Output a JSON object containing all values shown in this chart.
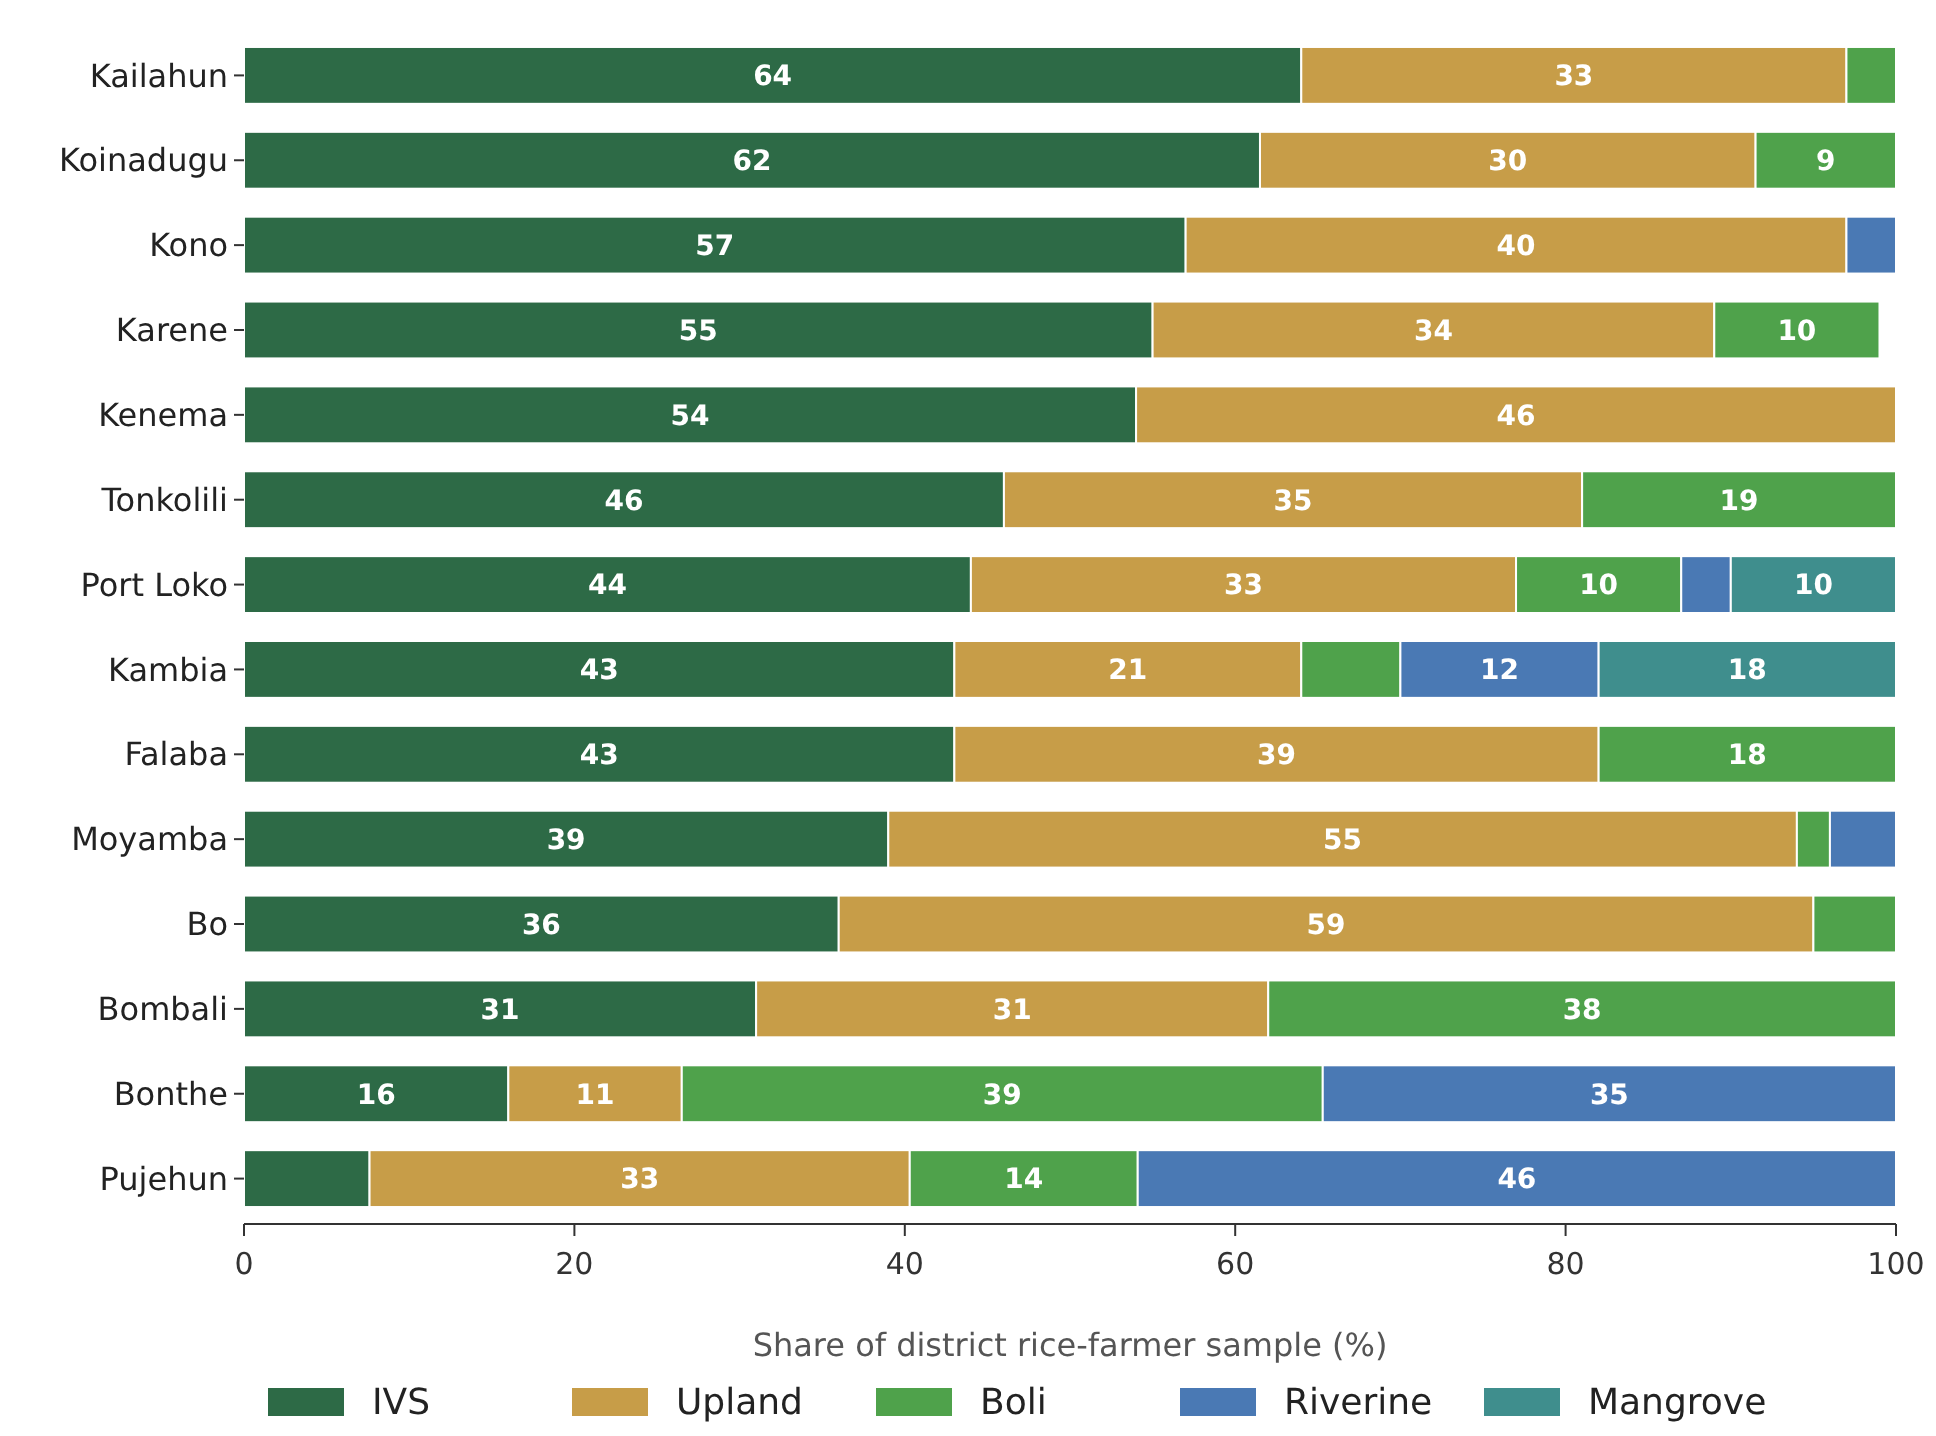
{
  "chart_data": {
    "type": "bar",
    "orientation": "horizontal",
    "stacked": true,
    "xlabel": "Share of district rice-farmer sample (%)",
    "categories": [
      "Kailahun",
      "Koinadugu",
      "Kono",
      "Karene",
      "Kenema",
      "Tonkolili",
      "Port Loko",
      "Kambia",
      "Falaba",
      "Moyamba",
      "Bo",
      "Bombali",
      "Bonthe",
      "Pujehun"
    ],
    "series": [
      {
        "name": "IVS",
        "color": "#2d6a46",
        "values": [
          64,
          61.5,
          57,
          55,
          54,
          46,
          44,
          43,
          43,
          39,
          36,
          31,
          16,
          7.6
        ],
        "value_labels": [
          "64",
          "62",
          "57",
          "55",
          "54",
          "46",
          "44",
          "43",
          "43",
          "39",
          "36",
          "31",
          "16",
          null
        ]
      },
      {
        "name": "Upland",
        "color": "#c79d48",
        "values": [
          33,
          30,
          40,
          34,
          46,
          35,
          33,
          21,
          39,
          55,
          59,
          31,
          10.5,
          32.7
        ],
        "value_labels": [
          "33",
          "30",
          "40",
          "34",
          "46",
          "35",
          "33",
          "21",
          "39",
          "55",
          "59",
          "31",
          "11",
          "33"
        ]
      },
      {
        "name": "Boli",
        "color": "#4fa24b",
        "values": [
          3,
          8.5,
          0,
          10,
          0,
          19,
          10,
          6,
          18,
          2,
          5,
          38,
          38.8,
          13.8
        ],
        "value_labels": [
          null,
          "9",
          null,
          "10",
          null,
          "19",
          "10",
          null,
          "18",
          null,
          null,
          "38",
          "39",
          "14"
        ]
      },
      {
        "name": "Riverine",
        "color": "#4a79b4",
        "values": [
          0,
          0,
          3,
          0,
          0,
          0,
          3,
          12,
          0,
          4,
          0,
          0,
          34.7,
          45.9
        ],
        "value_labels": [
          null,
          null,
          null,
          null,
          null,
          null,
          null,
          "12",
          null,
          null,
          null,
          null,
          "35",
          "46"
        ]
      },
      {
        "name": "Mangrove",
        "color": "#3f8e8d",
        "values": [
          0,
          0,
          0,
          0,
          0,
          0,
          10,
          18,
          0,
          0,
          0,
          0,
          0,
          0
        ],
        "value_labels": [
          null,
          null,
          null,
          null,
          null,
          null,
          "10",
          "18",
          null,
          null,
          null,
          null,
          null,
          null
        ]
      }
    ],
    "xlim": [
      0,
      100
    ],
    "xticks": [
      0,
      20,
      40,
      60,
      80,
      100
    ],
    "grid": false,
    "legend": "bottom"
  }
}
